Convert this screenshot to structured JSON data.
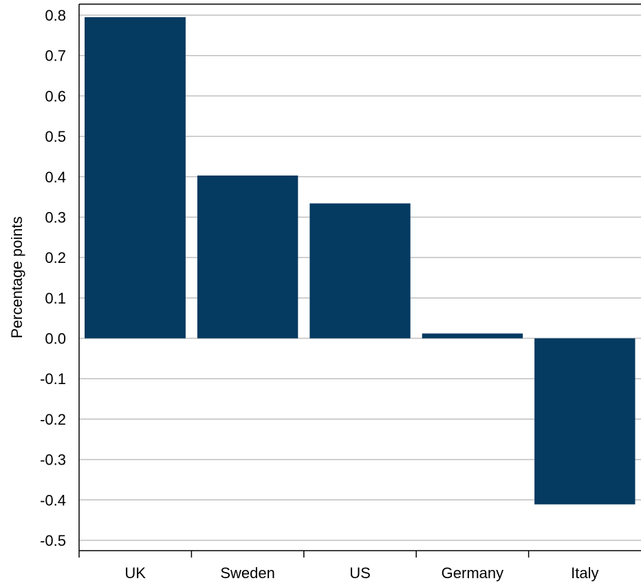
{
  "chart_data": {
    "type": "bar",
    "title": "",
    "xlabel": "",
    "ylabel": "Percentage points",
    "categories": [
      "UK",
      "Sweden",
      "US",
      "Germany",
      "Italy"
    ],
    "values": [
      0.795,
      0.403,
      0.334,
      0.012,
      -0.411
    ],
    "ylim": [
      -0.5,
      0.8
    ],
    "yticks": [
      "0.8",
      "0.7",
      "0.6",
      "0.5",
      "0.4",
      "0.3",
      "0.2",
      "0.1",
      "0.0",
      "-0.1",
      "-0.2",
      "-0.3",
      "-0.4",
      "-0.5"
    ],
    "grid": true,
    "legend": "none",
    "bar_color": "#053A61",
    "grid_color": "#BFBFBF"
  }
}
